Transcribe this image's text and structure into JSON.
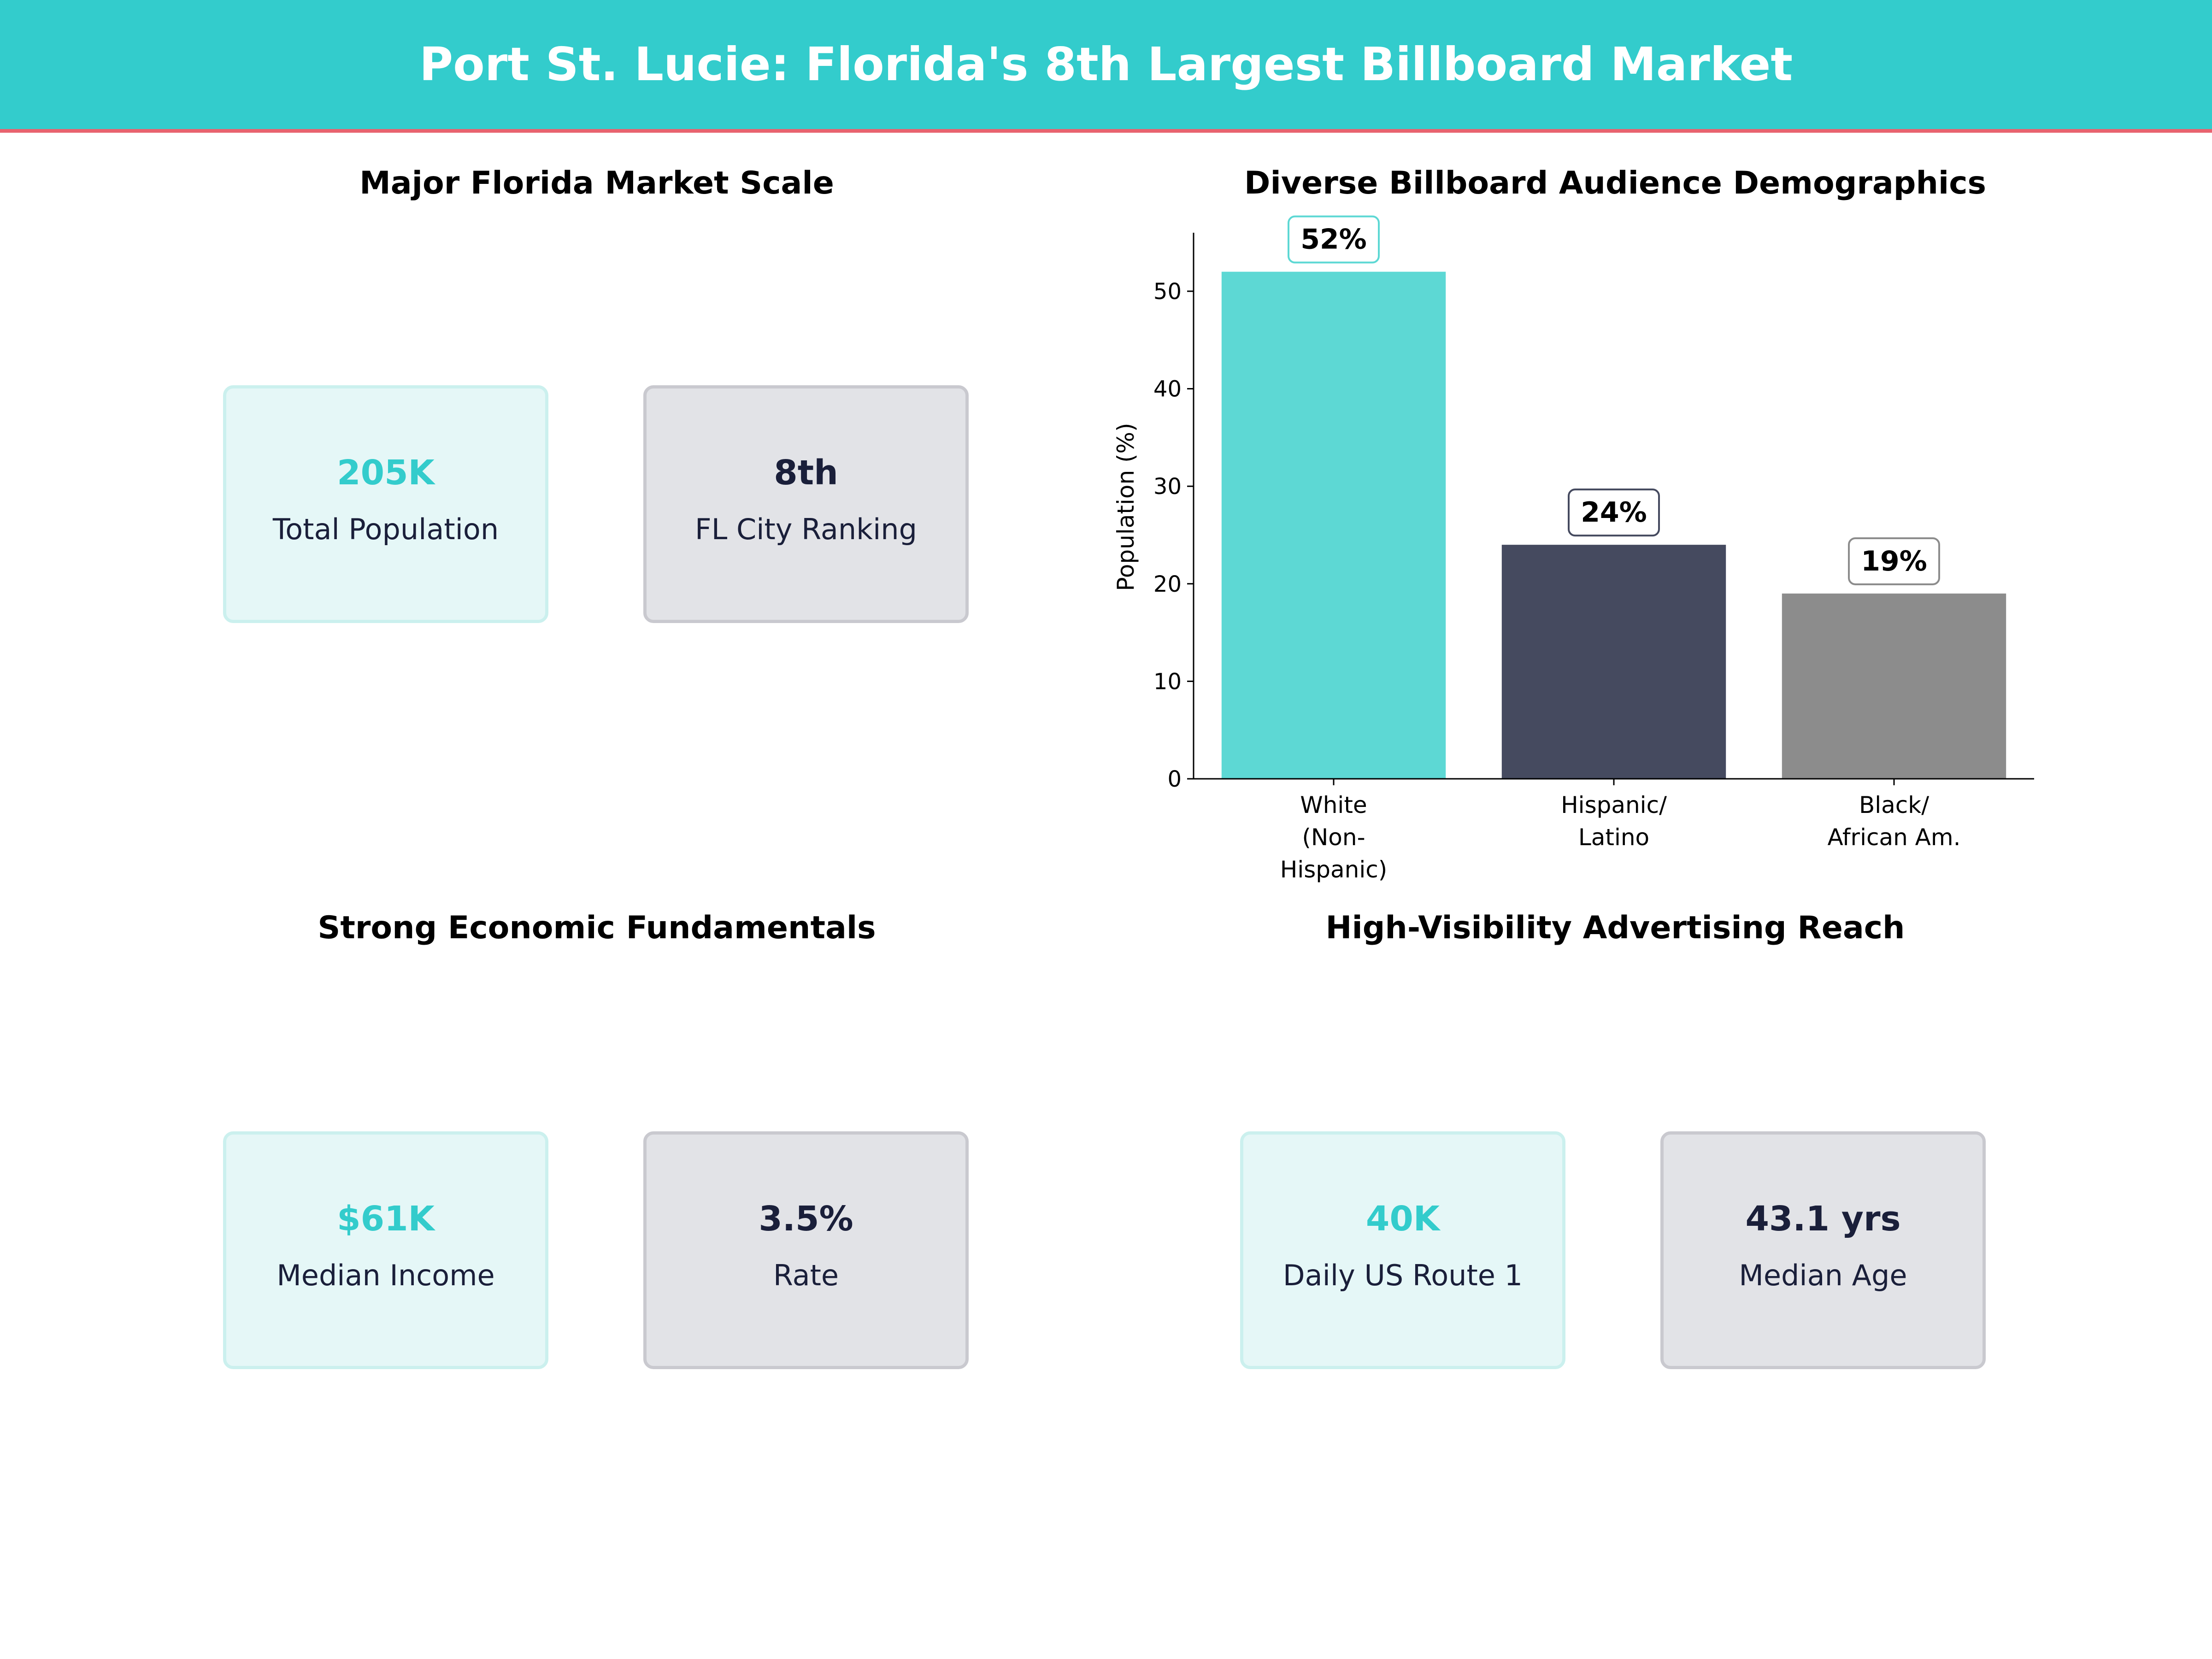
{
  "header": {
    "title": "Port St. Lucie: Florida's 8th Largest Billboard Market"
  },
  "colors": {
    "header": "#33CCCC",
    "accent_line": "#E8636F",
    "teal": "#33CCCC",
    "dark": "#1A1F3A"
  },
  "panels": {
    "market": {
      "title": "Major Florida Market Scale",
      "cards": [
        {
          "value": "205K",
          "label": "Total Population"
        },
        {
          "value": "8th",
          "label": "FL City Ranking"
        }
      ]
    },
    "economic": {
      "title": "Strong Economic Fundamentals",
      "cards": [
        {
          "value": "$61K",
          "label": "Median Income"
        },
        {
          "value": "3.5%",
          "label": "Rate"
        }
      ]
    },
    "reach": {
      "title": "High-Visibility Advertising Reach",
      "cards": [
        {
          "value": "40K",
          "label": "Daily US Route 1"
        },
        {
          "value": "43.1 yrs",
          "label": "Median Age"
        }
      ]
    }
  },
  "chart_data": {
    "type": "bar",
    "title": "Diverse Billboard Audience Demographics",
    "xlabel": "",
    "ylabel": "Population (%)",
    "categories": [
      "White\n(Non-\nHispanic)",
      "Hispanic/\nLatino",
      "Black/\nAfrican Am."
    ],
    "values": [
      52,
      24,
      19
    ],
    "data_labels": [
      "52%",
      "24%",
      "19%"
    ],
    "colors": [
      "#5DD8D4",
      "#454A5F",
      "#8C8C8C"
    ],
    "ylim": [
      0,
      56
    ],
    "yticks": [
      0,
      10,
      20,
      30,
      40,
      50
    ],
    "grid": false
  }
}
